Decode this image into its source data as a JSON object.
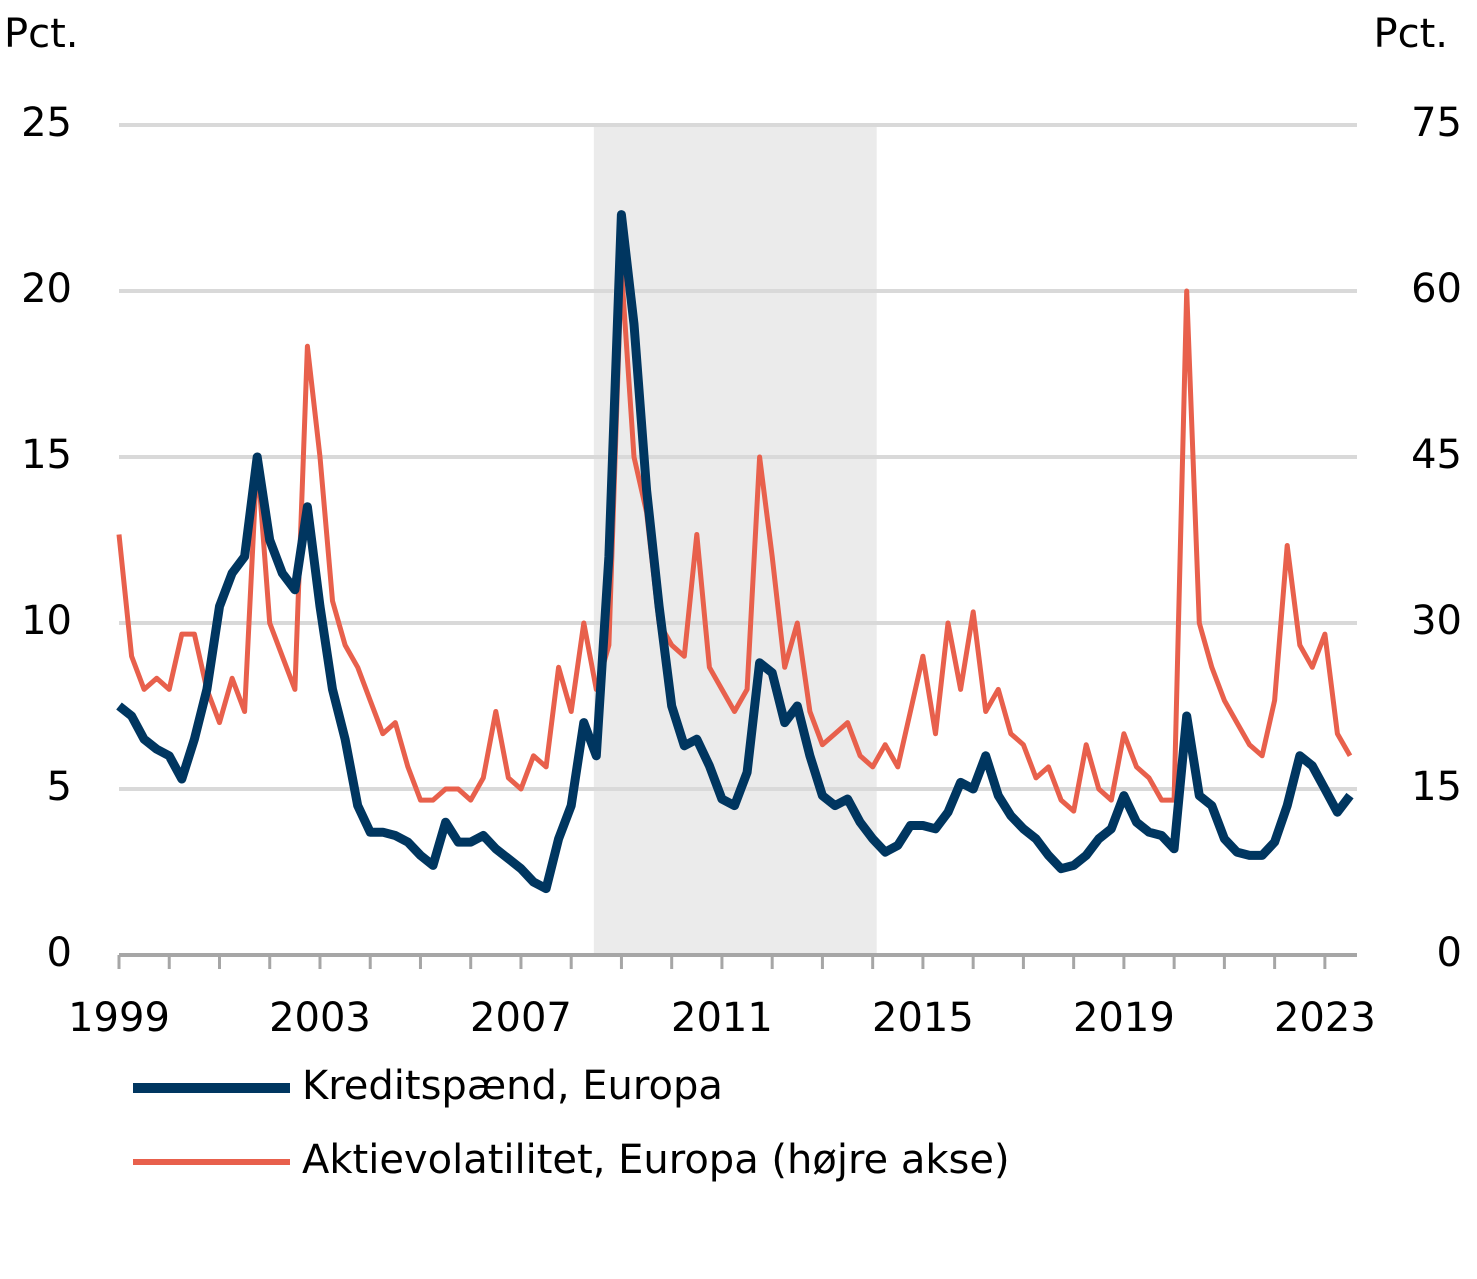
{
  "chart_data": {
    "type": "line",
    "ylabel": "Pct.",
    "y2label": "Pct.",
    "x": [
      1999,
      1999.25,
      1999.5,
      1999.75,
      2000,
      2000.25,
      2000.5,
      2000.75,
      2001,
      2001.25,
      2001.5,
      2001.75,
      2002,
      2002.25,
      2002.5,
      2002.75,
      2003,
      2003.25,
      2003.5,
      2003.75,
      2004,
      2004.25,
      2004.5,
      2004.75,
      2005,
      2005.25,
      2005.5,
      2005.75,
      2006,
      2006.25,
      2006.5,
      2006.75,
      2007,
      2007.25,
      2007.5,
      2007.75,
      2008,
      2008.25,
      2008.5,
      2008.75,
      2009,
      2009.25,
      2009.5,
      2009.75,
      2010,
      2010.25,
      2010.5,
      2010.75,
      2011,
      2011.25,
      2011.5,
      2011.75,
      2012,
      2012.25,
      2012.5,
      2012.75,
      2013,
      2013.25,
      2013.5,
      2013.75,
      2014,
      2014.25,
      2014.5,
      2014.75,
      2015,
      2015.25,
      2015.5,
      2015.75,
      2016,
      2016.25,
      2016.5,
      2016.75,
      2017,
      2017.25,
      2017.5,
      2017.75,
      2018,
      2018.25,
      2018.5,
      2018.75,
      2019,
      2019.25,
      2019.5,
      2019.75,
      2020,
      2020.25,
      2020.5,
      2020.75,
      2021,
      2021.25,
      2021.5,
      2021.75,
      2022,
      2022.25,
      2022.5,
      2022.75,
      2023,
      2023.25,
      2023.5
    ],
    "series": [
      {
        "name": "Kreditspænd, Europa",
        "color": "#003660",
        "width": 9,
        "values": [
          7.5,
          7.2,
          6.5,
          6.2,
          6.0,
          5.3,
          6.5,
          8.0,
          10.5,
          11.5,
          12.0,
          15.0,
          12.5,
          11.5,
          11.0,
          13.5,
          10.5,
          8.0,
          6.5,
          4.5,
          3.7,
          3.7,
          3.6,
          3.4,
          3.0,
          2.7,
          4.0,
          3.4,
          3.4,
          3.6,
          3.2,
          2.9,
          2.6,
          2.2,
          2.0,
          3.5,
          4.5,
          7.0,
          6.0,
          12,
          22.3,
          19.0,
          14.0,
          10.5,
          7.5,
          6.3,
          6.5,
          5.7,
          4.7,
          4.5,
          5.5,
          8.8,
          8.5,
          7.0,
          7.5,
          6.0,
          4.8,
          4.5,
          4.7,
          4.0,
          3.5,
          3.1,
          3.3,
          3.9,
          3.9,
          3.8,
          4.3,
          5.2,
          5.0,
          6.0,
          4.8,
          4.2,
          3.8,
          3.5,
          3.0,
          2.6,
          2.7,
          3.0,
          3.5,
          3.8,
          4.8,
          4.0,
          3.7,
          3.6,
          3.2,
          7.2,
          4.8,
          4.5,
          3.5,
          3.1,
          3.0,
          3.0,
          3.4,
          4.5,
          6.0,
          5.7,
          5.0,
          4.3,
          4.8
        ]
      },
      {
        "name": "Aktievolatilitet, Europa (højre akse)",
        "color": "#e8604c",
        "width": 5,
        "axis": "y2",
        "values": [
          38,
          27,
          24,
          25,
          24,
          29,
          29,
          24,
          21,
          25,
          22,
          45,
          30,
          27,
          24,
          55,
          45,
          32,
          28,
          26,
          23,
          20,
          21,
          17,
          14,
          14,
          15,
          15,
          14,
          16,
          22,
          16,
          15,
          18,
          17,
          26,
          22,
          30,
          24,
          28,
          62,
          45,
          40,
          30,
          28,
          27,
          38,
          26,
          24,
          22,
          24,
          45,
          36,
          26,
          30,
          22,
          19,
          20,
          21,
          18,
          17,
          19,
          17,
          22,
          27,
          20,
          30,
          24,
          31,
          22,
          24,
          20,
          19,
          16,
          17,
          14,
          13,
          19,
          15,
          14,
          20,
          17,
          16,
          14,
          14,
          60,
          30,
          26,
          23,
          21,
          19,
          18,
          23,
          37,
          28,
          26,
          29,
          20,
          18
        ]
      }
    ],
    "xlim": [
      1999,
      2023.5
    ],
    "xticks": [
      1999,
      2003,
      2007,
      2011,
      2015,
      2019,
      2023
    ],
    "xminorticks": [
      1999,
      2000,
      2001,
      2002,
      2003,
      2004,
      2005,
      2006,
      2007,
      2008,
      2009,
      2010,
      2011,
      2012,
      2013,
      2014,
      2015,
      2016,
      2017,
      2018,
      2019,
      2020,
      2021,
      2022,
      2023
    ],
    "ylim": [
      0,
      25
    ],
    "yticks": [
      0,
      5,
      10,
      15,
      20,
      25
    ],
    "y2lim": [
      0,
      75
    ],
    "y2ticks": [
      0,
      15,
      30,
      45,
      60,
      75
    ],
    "shaded_range": [
      2008.45,
      2014.08
    ],
    "shade_color": "#ebebeb",
    "grid": true
  }
}
